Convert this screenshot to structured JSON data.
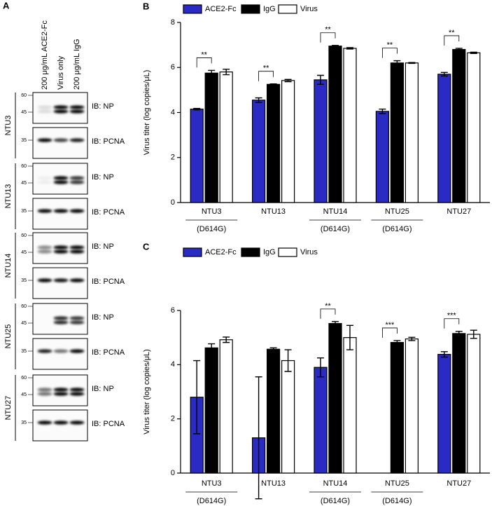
{
  "figure_labels": [
    "A",
    "B",
    "C"
  ],
  "blot": {
    "lane_labels": [
      "200 μg/mL ACE2-Fc",
      "Virus only",
      "200 μg/mL IgG"
    ],
    "samples": [
      {
        "name": "NTU3",
        "blots": [
          {
            "label": "IB: NP",
            "markers": [
              60,
              45
            ]
          },
          {
            "label": "IB: PCNA",
            "markers": [
              35
            ]
          }
        ]
      },
      {
        "name": "NTU13",
        "blots": [
          {
            "label": "IB: NP",
            "markers": [
              60,
              45
            ]
          },
          {
            "label": "IB: PCNA",
            "markers": [
              35
            ]
          }
        ]
      },
      {
        "name": "NTU14",
        "blots": [
          {
            "label": "IB: NP",
            "markers": [
              60,
              45
            ]
          },
          {
            "label": "IB: PCNA",
            "markers": [
              35
            ]
          }
        ]
      },
      {
        "name": "NTU25",
        "blots": [
          {
            "label": "IB: NP",
            "markers": [
              60,
              45
            ]
          },
          {
            "label": "IB: PCNA",
            "markers": [
              35
            ]
          }
        ]
      },
      {
        "name": "NTU27",
        "blots": [
          {
            "label": "IB: NP",
            "markers": [
              60,
              45
            ]
          },
          {
            "label": "IB: PCNA",
            "markers": [
              35
            ]
          }
        ]
      }
    ]
  },
  "chart_data": [
    {
      "type": "bar",
      "y_label": "Virus titer (log copies/μL)",
      "categories": [
        "NTU3",
        "NTU13",
        "NTU14",
        "NTU25",
        "NTU27"
      ],
      "category_notes": [
        "(D614G)",
        null,
        "(D614G)",
        "(D614G)",
        null
      ],
      "series": [
        {
          "name": "ACE2-Fc",
          "color": "#2a2ac4",
          "values": [
            4.15,
            4.55,
            5.45,
            4.05,
            5.7
          ],
          "errors": [
            0.03,
            0.1,
            0.2,
            0.1,
            0.08
          ]
        },
        {
          "name": "IgG",
          "color": "#000000",
          "values": [
            5.75,
            5.25,
            6.95,
            6.2,
            6.8
          ],
          "errors": [
            0.12,
            0.02,
            0.03,
            0.1,
            0.05
          ]
        },
        {
          "name": "Virus",
          "color": "#ffffff",
          "values": [
            5.8,
            5.42,
            6.85,
            6.2,
            6.65
          ],
          "errors": [
            0.12,
            0.05,
            0.03,
            0.02,
            0.03
          ]
        }
      ],
      "significance": [
        "**",
        "**",
        "**",
        "**",
        "**"
      ],
      "ylim": [
        0,
        8
      ],
      "yticks": [
        0,
        2,
        4,
        6,
        8
      ],
      "legend": "top"
    },
    {
      "type": "bar",
      "y_label": "Virus titer (log copies/μL)",
      "categories": [
        "NTU3",
        "NTU13",
        "NTU14",
        "NTU25",
        "NTU27"
      ],
      "category_notes": [
        "(D614G)",
        null,
        "(D614G)",
        "(D614G)",
        null
      ],
      "series": [
        {
          "name": "ACE2-Fc",
          "color": "#2a2ac4",
          "values": [
            2.8,
            1.3,
            3.9,
            null,
            4.38
          ],
          "errors": [
            1.35,
            2.25,
            0.35,
            null,
            0.1
          ]
        },
        {
          "name": "IgG",
          "color": "#000000",
          "values": [
            4.62,
            4.57,
            5.52,
            4.82,
            5.15
          ],
          "errors": [
            0.15,
            0.05,
            0.07,
            0.07,
            0.08
          ]
        },
        {
          "name": "Virus",
          "color": "#ffffff",
          "values": [
            4.92,
            4.15,
            5.0,
            4.95,
            5.12
          ],
          "errors": [
            0.1,
            0.4,
            0.45,
            0.06,
            0.15
          ]
        }
      ],
      "significance": [
        null,
        null,
        "**",
        "***",
        "***"
      ],
      "ylim": [
        0,
        6
      ],
      "yticks": [
        0,
        2,
        4,
        6
      ],
      "legend": "top"
    }
  ]
}
